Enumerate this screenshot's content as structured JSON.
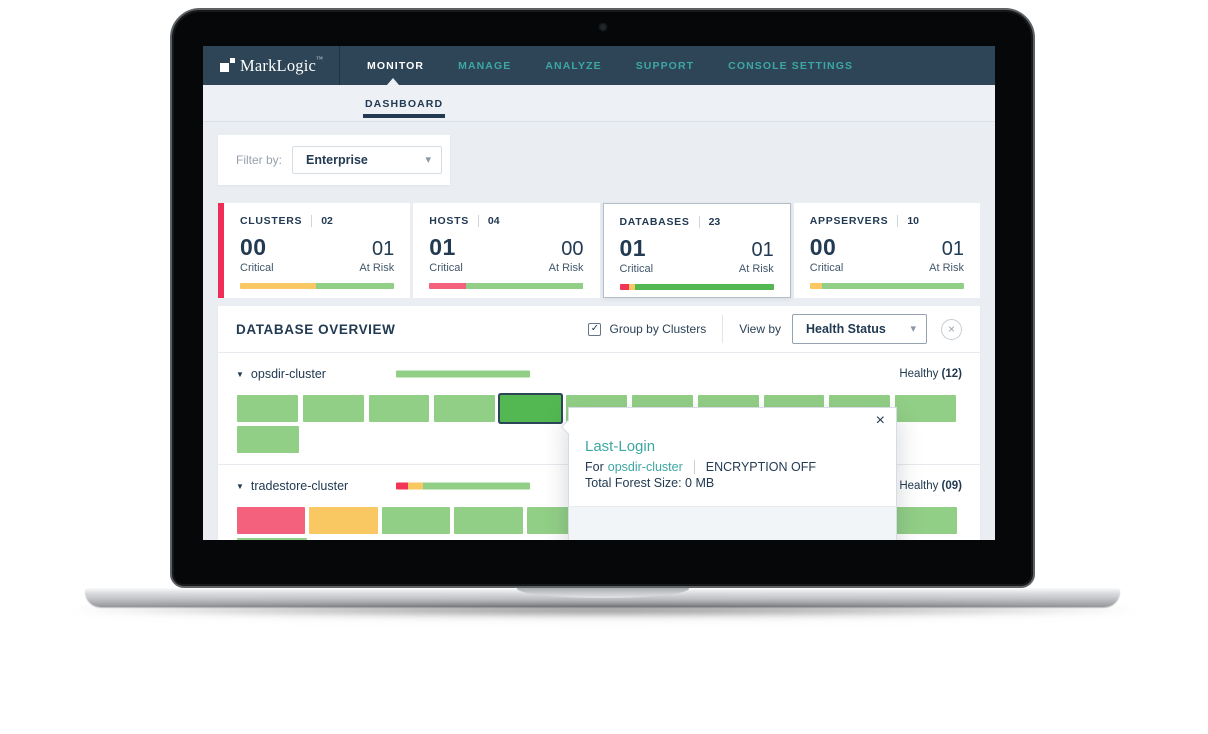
{
  "brand": {
    "name": "MarkLogic",
    "tm": "™"
  },
  "nav": {
    "items": [
      "MONITOR",
      "MANAGE",
      "ANALYZE",
      "SUPPORT",
      "CONSOLE SETTINGS"
    ],
    "active_index": 0
  },
  "subnav": {
    "tabs": [
      "DASHBOARD"
    ],
    "active_index": 0
  },
  "filter": {
    "label": "Filter by:",
    "value": "Enterprise"
  },
  "cards": [
    {
      "title": "CLUSTERS",
      "count": "02",
      "critical_value": "00",
      "critical_label": "Critical",
      "risk_value": "01",
      "risk_label": "At Risk",
      "selected": false,
      "accent": true,
      "bar": [
        [
          "yellow",
          49
        ],
        [
          "green",
          51
        ]
      ]
    },
    {
      "title": "HOSTS",
      "count": "04",
      "critical_value": "01",
      "critical_label": "Critical",
      "risk_value": "00",
      "risk_label": "At Risk",
      "selected": false,
      "accent": false,
      "bar": [
        [
          "pink",
          24
        ],
        [
          "green",
          76
        ]
      ]
    },
    {
      "title": "DATABASES",
      "count": "23",
      "critical_value": "01",
      "critical_label": "Critical",
      "risk_value": "01",
      "risk_label": "At Risk",
      "selected": true,
      "accent": false,
      "bar": [
        [
          "red",
          6
        ],
        [
          "yellow",
          4
        ],
        [
          "green_dark",
          90
        ]
      ]
    },
    {
      "title": "APPSERVERS",
      "count": "10",
      "critical_value": "00",
      "critical_label": "Critical",
      "risk_value": "01",
      "risk_label": "At Risk",
      "selected": false,
      "accent": false,
      "bar": [
        [
          "yellow",
          8
        ],
        [
          "green",
          92
        ]
      ]
    }
  ],
  "overview": {
    "title": "DATABASE OVERVIEW",
    "group_by_label": "Group by Clusters",
    "group_by_checked": true,
    "view_by_label": "View by",
    "view_by_value": "Health Status",
    "clusters": [
      {
        "name": "opsdir-cluster",
        "health_label": "Healthy",
        "health_count": "(12)",
        "minibar": [
          [
            "green",
            100
          ]
        ],
        "rows": [
          [
            "healthy",
            "healthy",
            "healthy",
            "healthy",
            "selected",
            "healthy",
            "healthy",
            "healthy",
            "healthy",
            "healthy",
            "healthy"
          ],
          [
            "healthy"
          ]
        ]
      },
      {
        "name": "tradestore-cluster",
        "health_label": "Healthy",
        "health_count": "(09)",
        "minibar": [
          [
            "red",
            9
          ],
          [
            "yellow",
            11
          ],
          [
            "green",
            80
          ]
        ],
        "rows": [
          [
            "critical",
            "atrisk",
            "healthy",
            "healthy",
            "healthy",
            "healthy",
            "healthy",
            "healthy",
            "healthy",
            "healthy"
          ],
          [
            "healthy"
          ]
        ]
      }
    ]
  },
  "popup": {
    "title": "Last-Login",
    "for_label": "For",
    "cluster_link": "opsdir-cluster",
    "encryption": "ENCRYPTION OFF",
    "total_forest": "Total Forest Size: 0 MB",
    "close": "×"
  },
  "icons": {
    "close": "×",
    "caret_down": "▾",
    "check": "✓",
    "tri_down": "▼"
  },
  "colors": {
    "navbar": "#2d4557",
    "navy": "#223a52",
    "teal": "#3da7a4",
    "accent": "#ef2d56",
    "red": "#f23557",
    "pink": "#f4617c",
    "yellow": "#fac863",
    "green": "#92cf86",
    "green_dark": "#53b852"
  }
}
